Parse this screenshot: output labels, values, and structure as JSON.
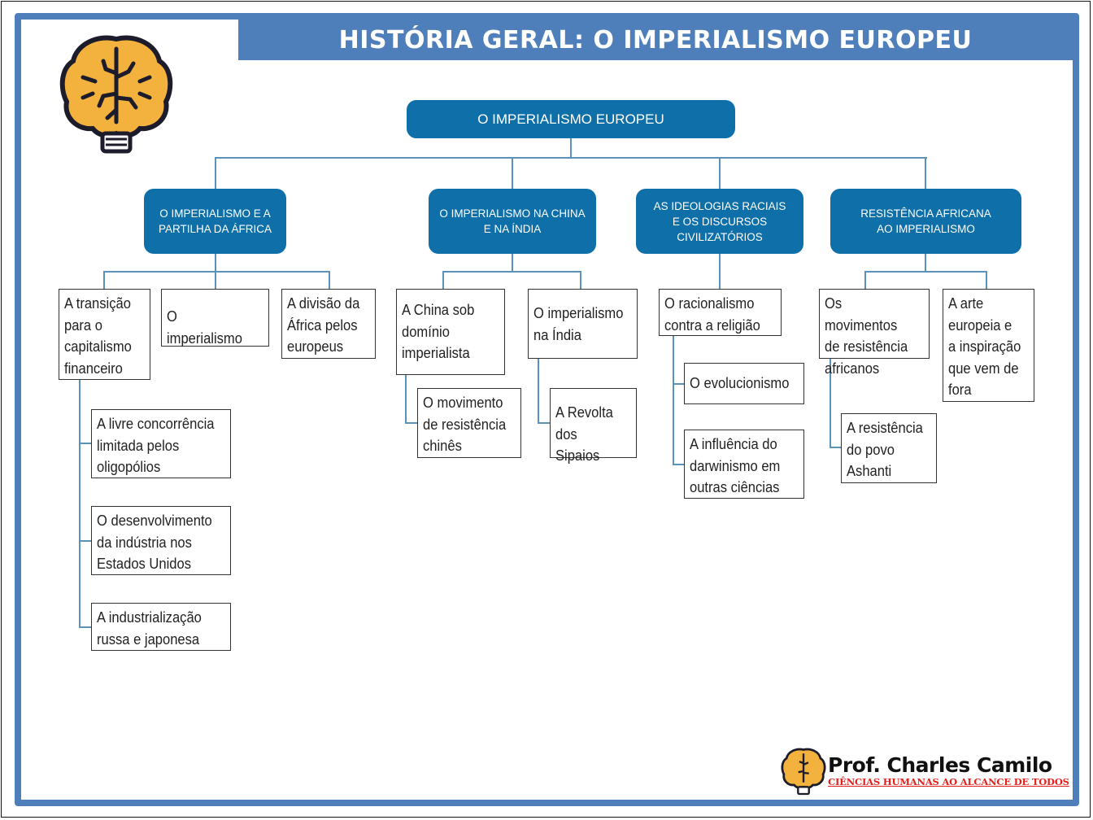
{
  "header": {
    "title": "HISTÓRIA GERAL: O IMPERIALISMO EUROPEU"
  },
  "colors": {
    "frame": "#4f7fba",
    "node": "#0f6fa8",
    "connector": "#5a92b8",
    "tagline": "#e3201b",
    "brain": "#f3b13e"
  },
  "diagram": {
    "root": "O IMPERIALISMO EUROPEU",
    "branches": [
      {
        "label": "O IMPERIALISMO E A\nPARTILHA DA ÁFRICA",
        "children": [
          {
            "label": "A transição\npara o\ncapitalismo\nfinanceiro",
            "children": [
              "A livre concorrência\nlimitada pelos\noligopólios",
              "O desenvolvimento\nda indústria nos\nEstados Unidos",
              "A industrialização\nrussa e japonesa"
            ]
          },
          {
            "label": "O imperialismo"
          },
          {
            "label": "A divisão da\nÁfrica pelos\neuropeus"
          }
        ]
      },
      {
        "label": "O IMPERIALISMO NA CHINA\nE NA ÍNDIA",
        "children": [
          {
            "label": "A China sob\ndomínio\nimperialista",
            "children": [
              "O movimento\nde resistência\nchinês"
            ]
          },
          {
            "label": "O imperialismo\nna Índia",
            "children": [
              "A Revolta\ndos Sipaios"
            ]
          }
        ]
      },
      {
        "label": "AS IDEOLOGIAS RACIAIS\nE OS DISCURSOS\nCIVILIZATÓRIOS",
        "children": [
          {
            "label": "O racionalismo\ncontra a religião",
            "children": [
              "O evolucionismo",
              "A influência do\ndarwinismo em\noutras ciências"
            ]
          }
        ]
      },
      {
        "label": "RESISTÊNCIA AFRICANA\nAO IMPERIALISMO",
        "children": [
          {
            "label": "Os movimentos\nde resistência\nafricanos",
            "children": [
              "A resistência\ndo povo\nAshanti"
            ]
          },
          {
            "label": "A arte\neuropeia e\na inspiração\nque vem de\nfora"
          }
        ]
      }
    ]
  },
  "footer": {
    "name": "Prof. Charles Camilo",
    "tagline": "CIÊNCIAS HUMANAS AO ALCANCE DE TODOS",
    "logo_icon": "brain-lightbulb-icon"
  }
}
